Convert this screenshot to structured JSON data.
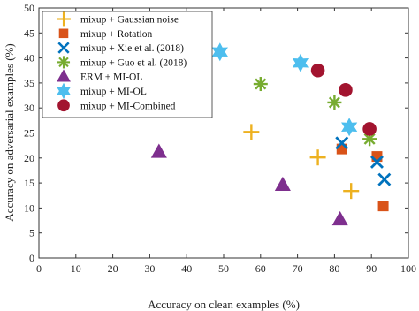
{
  "chart_data": {
    "type": "scatter",
    "xlabel": "Accuracy on clean examples (%)",
    "ylabel": "Accuracy on adversarial examples (%)",
    "xlim": [
      0,
      100
    ],
    "ylim": [
      0,
      50
    ],
    "xticks": [
      "0",
      "10",
      "20",
      "30",
      "40",
      "50",
      "60",
      "70",
      "80",
      "90",
      "100"
    ],
    "yticks": [
      "0",
      "5",
      "10",
      "15",
      "20",
      "25",
      "30",
      "35",
      "40",
      "45",
      "50"
    ],
    "grid": false,
    "legend_position": "top-left",
    "series": [
      {
        "name": "mixup + Gaussian noise",
        "marker": "plus",
        "color": "#EDB120",
        "points": [
          [
            57.5,
            25.2
          ],
          [
            75.5,
            20.1
          ],
          [
            84.5,
            13.4
          ]
        ]
      },
      {
        "name": "mixup + Rotation",
        "marker": "square",
        "color": "#D95319",
        "points": [
          [
            82.0,
            21.8
          ],
          [
            91.5,
            20.3
          ],
          [
            93.2,
            10.4
          ]
        ]
      },
      {
        "name": "mixup + Xie et al. (2018)",
        "marker": "x",
        "color": "#0072BD",
        "points": [
          [
            82.0,
            23.0
          ],
          [
            91.5,
            19.2
          ],
          [
            93.5,
            15.7
          ]
        ]
      },
      {
        "name": "mixup + Guo et al. (2018)",
        "marker": "asterisk",
        "color": "#77AC30",
        "points": [
          [
            60.0,
            34.8
          ],
          [
            80.0,
            31.1
          ],
          [
            89.5,
            23.8
          ]
        ]
      },
      {
        "name": "ERM + MI-OL",
        "marker": "triangle",
        "color": "#7E2F8E",
        "points": [
          [
            32.5,
            21.2
          ],
          [
            66.0,
            14.6
          ],
          [
            81.5,
            7.7
          ]
        ]
      },
      {
        "name": "mixup + MI-OL",
        "marker": "hexagram",
        "color": "#4DBEEE",
        "points": [
          [
            49.0,
            41.2
          ],
          [
            70.8,
            39.0
          ],
          [
            84.0,
            26.2
          ]
        ]
      },
      {
        "name": "mixup + MI-Combined",
        "marker": "circle",
        "color": "#A2142F",
        "points": [
          [
            75.5,
            37.5
          ],
          [
            83.0,
            33.6
          ],
          [
            89.5,
            25.8
          ]
        ]
      }
    ]
  }
}
